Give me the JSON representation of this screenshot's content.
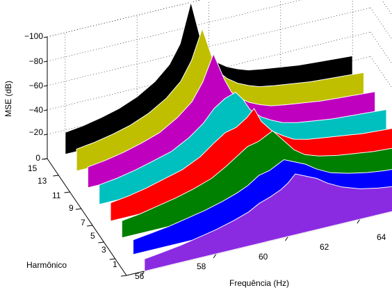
{
  "chart_data": {
    "type": "area",
    "subtype": "3d-waterfall",
    "title": "",
    "xlabel": "Frequência (Hz)",
    "ylabel": "Harmônico",
    "zlabel": "MSE (dB)",
    "x_ticks": [
      "56",
      "58",
      "60",
      "62",
      "64"
    ],
    "y_ticks": [
      "1",
      "3",
      "5",
      "7",
      "9",
      "11",
      "13",
      "15"
    ],
    "z_ticks": [
      "0",
      "−20",
      "−40",
      "−60",
      "−80",
      "−100"
    ],
    "xlim": [
      55.5,
      64.5
    ],
    "ylim": [
      1,
      15
    ],
    "zlim": [
      0,
      -100
    ],
    "z_direction": "reversed",
    "grid": true,
    "x": [
      56,
      56.5,
      57,
      57.5,
      58,
      58.5,
      58.9,
      59.2,
      59.5,
      59.8,
      60,
      60.2,
      60.5,
      60.8,
      61.1,
      61.5,
      62,
      62.5,
      63,
      63.5,
      64
    ],
    "series": [
      {
        "harmonic": 15,
        "color": "#000000",
        "values": [
          -18,
          -20,
          -23,
          -27,
          -33,
          -42,
          -53,
          -68,
          -100,
          -64,
          -52,
          -46,
          -40,
          -36,
          -33,
          -31,
          -29,
          -27,
          -26,
          -25,
          -24
        ]
      },
      {
        "harmonic": 13,
        "color": "#bfbf00",
        "values": [
          -18,
          -20,
          -23,
          -27,
          -33,
          -42,
          -53,
          -68,
          -92,
          -64,
          -52,
          -46,
          -40,
          -36,
          -33,
          -31,
          -29,
          -27,
          -26,
          -25,
          -24
        ]
      },
      {
        "harmonic": 11,
        "color": "#bf00bf",
        "values": [
          -17,
          -19,
          -22,
          -26,
          -31,
          -40,
          -50,
          -64,
          -85,
          -62,
          -50,
          -44,
          -38,
          -34,
          -31,
          -29,
          -27,
          -25,
          -24,
          -23,
          -22
        ]
      },
      {
        "harmonic": 9,
        "color": "#00bfbf",
        "values": [
          -16,
          -18,
          -21,
          -25,
          -29,
          -37,
          -46,
          -56,
          -62,
          -65,
          -58,
          -48,
          -40,
          -35,
          -31,
          -28,
          -26,
          -24,
          -23,
          -22,
          -21
        ]
      },
      {
        "harmonic": 7,
        "color": "#ff0000",
        "values": [
          -15,
          -17,
          -20,
          -24,
          -28,
          -35,
          -44,
          -50,
          -52,
          -58,
          -64,
          -52,
          -42,
          -36,
          -31,
          -28,
          -26,
          -24,
          -22,
          -21,
          -20
        ]
      },
      {
        "harmonic": 5,
        "color": "#008000",
        "values": [
          -14,
          -16,
          -19,
          -22,
          -26,
          -31,
          -38,
          -44,
          -50,
          -52,
          -55,
          -58,
          -48,
          -38,
          -32,
          -28,
          -25,
          -23,
          -21,
          -20,
          -19
        ]
      },
      {
        "harmonic": 3,
        "color": "#0000ff",
        "values": [
          -12,
          -14,
          -16,
          -19,
          -22,
          -26,
          -30,
          -34,
          -40,
          -42,
          -45,
          -48,
          -44,
          -40,
          -34,
          -28,
          -24,
          -21,
          -19,
          -18,
          -17
        ]
      },
      {
        "harmonic": 1,
        "color": "#8a2be2",
        "values": [
          -10,
          -12,
          -14,
          -17,
          -20,
          -24,
          -28,
          -33,
          -36,
          -40,
          -44,
          -50,
          -46,
          -42,
          -36,
          -30,
          -25,
          -22,
          -20,
          -19,
          -18
        ]
      }
    ]
  }
}
